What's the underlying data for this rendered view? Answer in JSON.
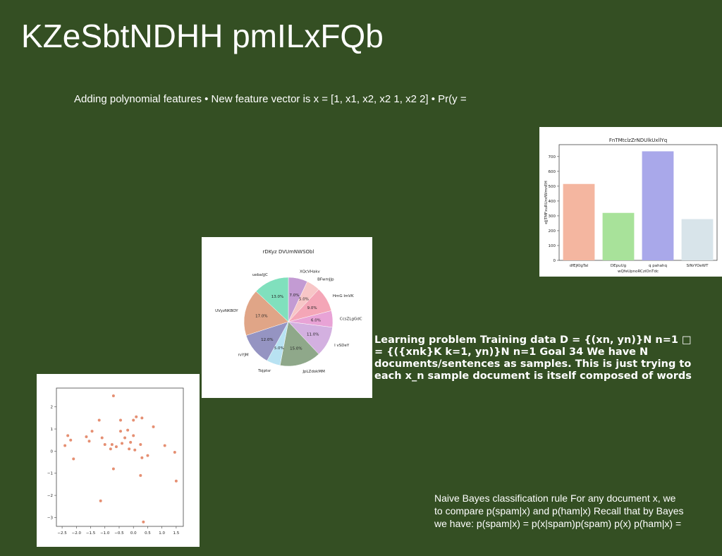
{
  "slide": {
    "title": "KZeSbtNDHH pmILxFQb",
    "bullet": "Adding polynomial features • New feature vector is x = [1, x1, x2, x2 1, x2 2] • Pr(y =",
    "learning_text": "Learning problem Training data D = {(xn, yn)}N n=1 □\n= {({xnk}K k=1, yn)}N n=1 Goal 34 We have N\ndocuments/sentences as samples. This is just trying to\neach x_n sample document is itself composed of words",
    "bayes_text": "Naive Bayes classification rule For any document x, we\nto compare p(spam|x) and p(ham|x) Recall that by Bayes\nwe have: p(spam|x) = p(x|spam)p(spam) p(x) p(ham|x) ="
  },
  "chart_data": [
    {
      "type": "bar",
      "title": "FnTMtclzZrNDUlkUxllYq",
      "xlabel": "wQfeUpnoRCziOnTdc",
      "ylabel": "eJjTMFxuRUrxfWmnEH",
      "categories": [
        "dfEjKIgTal",
        "DEpuUg",
        "q pahahq",
        "SlNrYOeWT"
      ],
      "values": [
        515,
        320,
        735,
        278
      ],
      "colors": [
        "#f4b6a0",
        "#a8e29a",
        "#a9a8ea",
        "#d8e4ea"
      ],
      "ylim": [
        0,
        780
      ],
      "yticks": [
        0,
        100,
        200,
        300,
        400,
        500,
        600,
        700
      ]
    },
    {
      "type": "pie",
      "title": "rDKyz DVUmNWSObl",
      "labels": [
        "XQcVHakv",
        "BFwmJJp",
        "HmG lmVK",
        "CcsZLgGdC",
        "I vSDeY",
        "JpLZdokMM",
        "Tojptsr",
        "rvYJM",
        "UVyzNKBOY",
        "uebaljjC"
      ],
      "values": [
        7.0,
        5.0,
        9.0,
        6.0,
        11.0,
        15.0,
        5.0,
        12.0,
        17.0,
        13.0
      ],
      "pct_labels": [
        "7.0%",
        "5.0%",
        "9.0%",
        "6.0%",
        "11.0%",
        "15.0%",
        "5.0%",
        "12.0%",
        "17.0%",
        "13.0%"
      ],
      "colors": [
        "#c39bd3",
        "#f7c6c7",
        "#f4a6b7",
        "#e8a3d6",
        "#d3b0e0",
        "#8fa88a",
        "#b8e2f2",
        "#9594c2",
        "#e0a587",
        "#80e0bd"
      ]
    },
    {
      "type": "scatter",
      "title": "",
      "xlabel": "",
      "ylabel": "",
      "xlim": [
        -2.7,
        1.75
      ],
      "ylim": [
        -3.4,
        2.85
      ],
      "xticks": [
        -2.5,
        -2.0,
        -1.5,
        -1.0,
        -0.5,
        0.0,
        0.5,
        1.0,
        1.5
      ],
      "xtick_labels": [
        "−2.5",
        "−2.0",
        "−1.5",
        "−1.0",
        "−0.5",
        "0.0",
        "0.5",
        "1.0",
        "1.5"
      ],
      "yticks": [
        -3,
        -2,
        -1,
        0,
        1,
        2
      ],
      "ytick_labels": [
        "−3",
        "−2",
        "−1",
        "0",
        "1",
        "2"
      ],
      "color": "#e58f72",
      "points": [
        [
          -2.4,
          0.25
        ],
        [
          -2.3,
          0.7
        ],
        [
          -2.2,
          0.5
        ],
        [
          -2.1,
          -0.35
        ],
        [
          -1.65,
          0.65
        ],
        [
          -1.55,
          0.45
        ],
        [
          -1.45,
          0.9
        ],
        [
          -1.2,
          1.4
        ],
        [
          -1.15,
          -2.25
        ],
        [
          -1.1,
          0.6
        ],
        [
          -1.0,
          0.3
        ],
        [
          -0.8,
          0.1
        ],
        [
          -0.75,
          0.3
        ],
        [
          -0.7,
          2.5
        ],
        [
          -0.7,
          -0.8
        ],
        [
          -0.6,
          0.2
        ],
        [
          -0.45,
          0.9
        ],
        [
          -0.45,
          1.4
        ],
        [
          -0.4,
          0.35
        ],
        [
          -0.3,
          0.6
        ],
        [
          -0.2,
          0.95
        ],
        [
          -0.15,
          0.1
        ],
        [
          -0.1,
          0.4
        ],
        [
          0.0,
          1.4
        ],
        [
          0.0,
          0.7
        ],
        [
          0.05,
          0.05
        ],
        [
          0.1,
          1.55
        ],
        [
          0.25,
          0.3
        ],
        [
          0.3,
          -0.3
        ],
        [
          0.25,
          -1.1
        ],
        [
          0.3,
          1.5
        ],
        [
          0.35,
          -3.2
        ],
        [
          0.5,
          -0.2
        ],
        [
          0.7,
          1.1
        ],
        [
          1.1,
          0.25
        ],
        [
          1.45,
          -0.05
        ],
        [
          1.5,
          -1.35
        ]
      ]
    }
  ]
}
